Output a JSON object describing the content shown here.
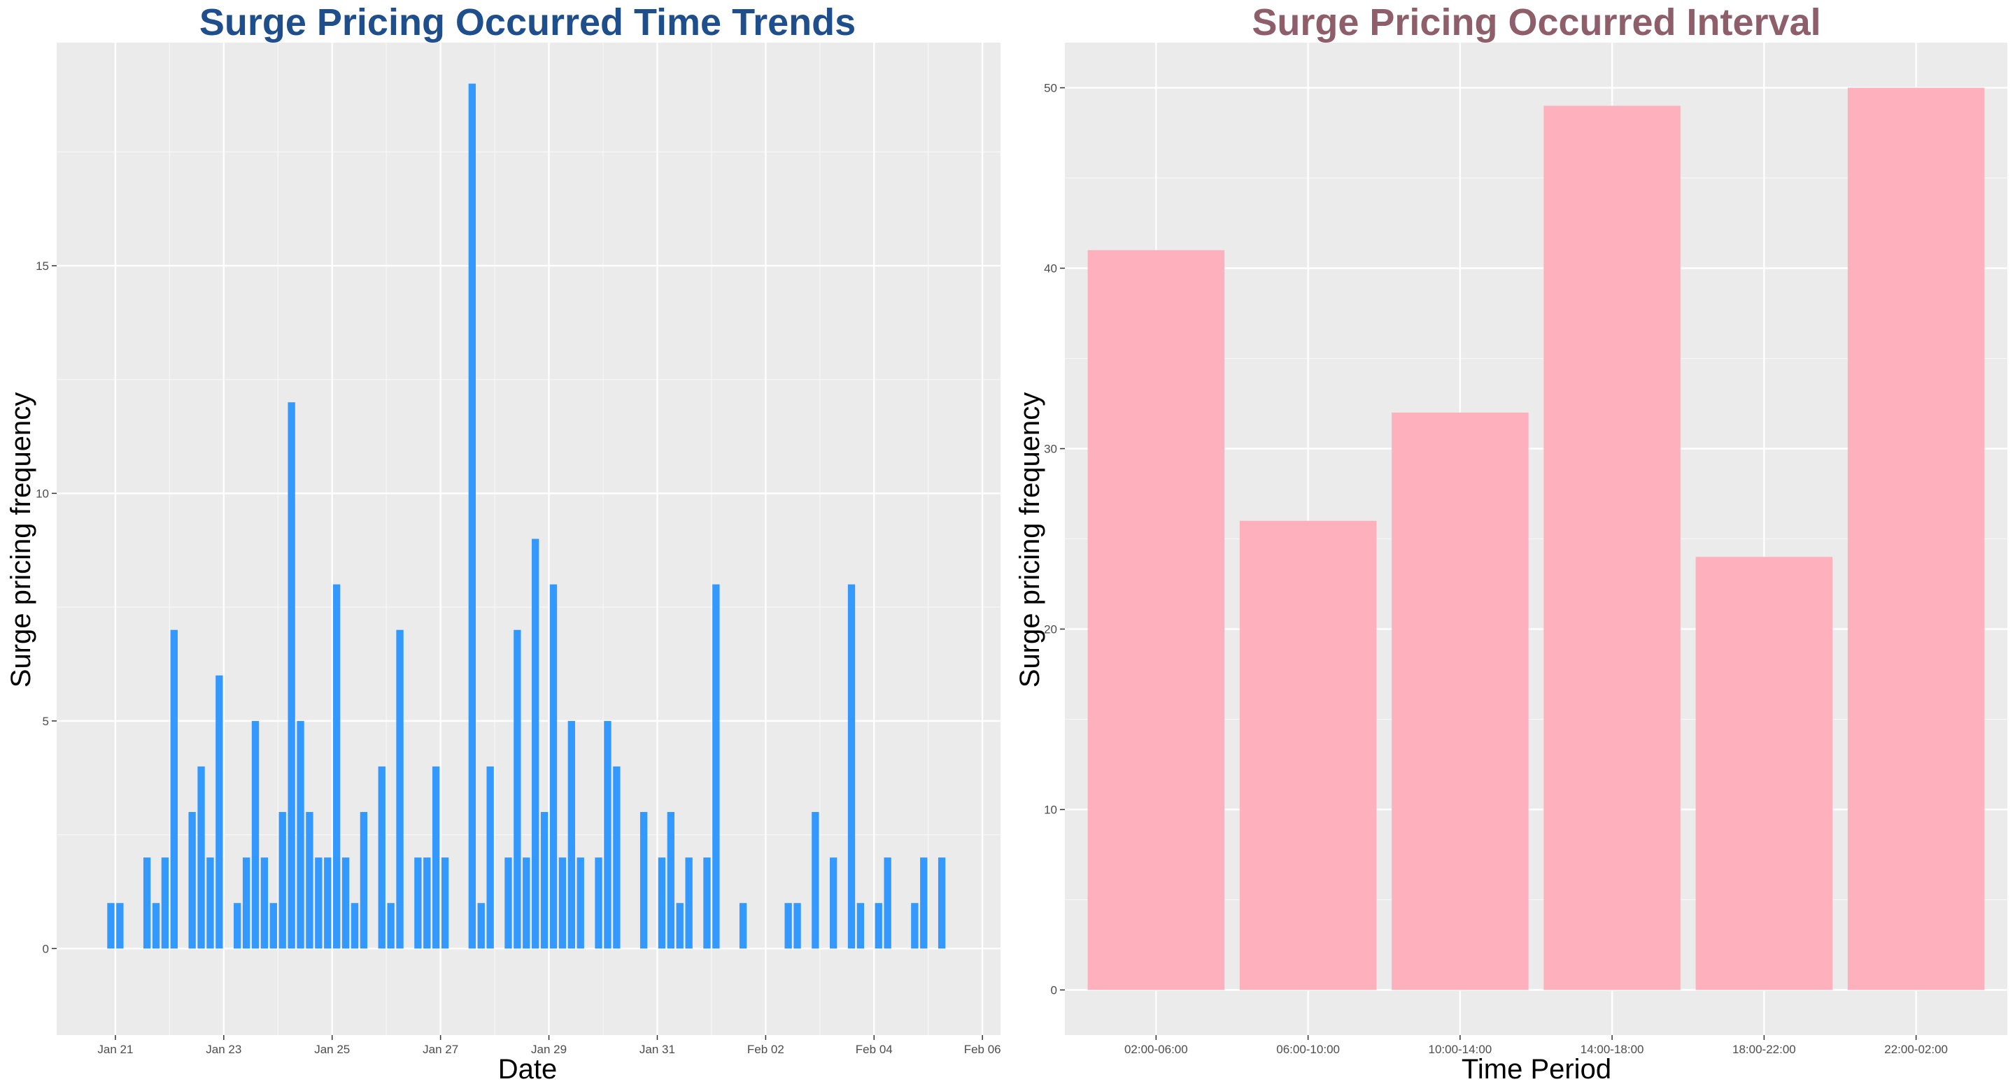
{
  "chart_data": [
    {
      "type": "bar",
      "title": "Surge Pricing Occurred Time Trends",
      "title_color": "#1f4e8c",
      "xlabel": "Date",
      "ylabel": "Surge pricing frequency",
      "bar_color": "#3399ff",
      "panel_bg": "#ebebeb",
      "grid": true,
      "ylim": [
        -1.9,
        19.9
      ],
      "yticks": [
        0,
        5,
        10,
        15
      ],
      "xlim": [
        "2021-01-19 22:00",
        "2021-02-06 08:00"
      ],
      "xticks": [
        "Jan 21",
        "Jan 23",
        "Jan 25",
        "Jan 27",
        "Jan 29",
        "Jan 31",
        "Feb 02",
        "Feb 04",
        "Feb 06"
      ],
      "xtick_dates": [
        "2021-01-21",
        "2021-01-23",
        "2021-01-25",
        "2021-01-27",
        "2021-01-29",
        "2021-01-31",
        "2021-02-02",
        "2021-02-04",
        "2021-02-06"
      ],
      "bar_width_hours": 3.2,
      "x": [
        "2021-01-20 22:00",
        "2021-01-21 02:00",
        "2021-01-21 14:00",
        "2021-01-21 18:00",
        "2021-01-21 22:00",
        "2021-01-22 02:00",
        "2021-01-22 10:00",
        "2021-01-22 14:00",
        "2021-01-22 18:00",
        "2021-01-22 22:00",
        "2021-01-23 06:00",
        "2021-01-23 10:00",
        "2021-01-23 14:00",
        "2021-01-23 18:00",
        "2021-01-23 22:00",
        "2021-01-24 02:00",
        "2021-01-24 06:00",
        "2021-01-24 10:00",
        "2021-01-24 14:00",
        "2021-01-24 18:00",
        "2021-01-24 22:00",
        "2021-01-25 02:00",
        "2021-01-25 06:00",
        "2021-01-25 10:00",
        "2021-01-25 14:00",
        "2021-01-25 22:00",
        "2021-01-26 02:00",
        "2021-01-26 06:00",
        "2021-01-26 14:00",
        "2021-01-26 18:00",
        "2021-01-26 22:00",
        "2021-01-27 02:00",
        "2021-01-27 14:00",
        "2021-01-27 18:00",
        "2021-01-27 22:00",
        "2021-01-28 06:00",
        "2021-01-28 10:00",
        "2021-01-28 14:00",
        "2021-01-28 18:00",
        "2021-01-28 22:00",
        "2021-01-29 02:00",
        "2021-01-29 06:00",
        "2021-01-29 10:00",
        "2021-01-29 14:00",
        "2021-01-29 22:00",
        "2021-01-30 02:00",
        "2021-01-30 06:00",
        "2021-01-30 18:00",
        "2021-01-31 02:00",
        "2021-01-31 06:00",
        "2021-01-31 10:00",
        "2021-01-31 14:00",
        "2021-01-31 22:00",
        "2021-02-01 02:00",
        "2021-02-01 14:00",
        "2021-02-02 10:00",
        "2021-02-02 14:00",
        "2021-02-02 22:00",
        "2021-02-03 06:00",
        "2021-02-03 14:00",
        "2021-02-03 18:00",
        "2021-02-04 02:00",
        "2021-02-04 06:00",
        "2021-02-04 18:00",
        "2021-02-04 22:00",
        "2021-02-05 06:00"
      ],
      "values": [
        1,
        1,
        2,
        1,
        2,
        7,
        3,
        4,
        2,
        6,
        1,
        2,
        5,
        2,
        1,
        3,
        12,
        5,
        3,
        2,
        2,
        8,
        2,
        1,
        3,
        4,
        1,
        7,
        2,
        2,
        4,
        2,
        19,
        1,
        4,
        2,
        7,
        2,
        9,
        3,
        8,
        2,
        5,
        2,
        2,
        5,
        4,
        3,
        2,
        3,
        1,
        2,
        2,
        8,
        1,
        1,
        1,
        3,
        2,
        8,
        1,
        1,
        2,
        1,
        2,
        2
      ]
    },
    {
      "type": "bar",
      "title": "Surge Pricing Occurred Interval",
      "title_color": "#8e5f6b",
      "xlabel": "Time Period",
      "ylabel": "Surge pricing frequency",
      "bar_color": "#ffb0bd",
      "panel_bg": "#ebebeb",
      "grid": true,
      "ylim": [
        -2.5,
        52.5
      ],
      "yticks": [
        0,
        10,
        20,
        30,
        40,
        50
      ],
      "categories": [
        "02:00-06:00",
        "06:00-10:00",
        "10:00-14:00",
        "14:00-18:00",
        "18:00-22:00",
        "22:00-02:00"
      ],
      "values": [
        41,
        26,
        32,
        49,
        24,
        50
      ]
    }
  ]
}
